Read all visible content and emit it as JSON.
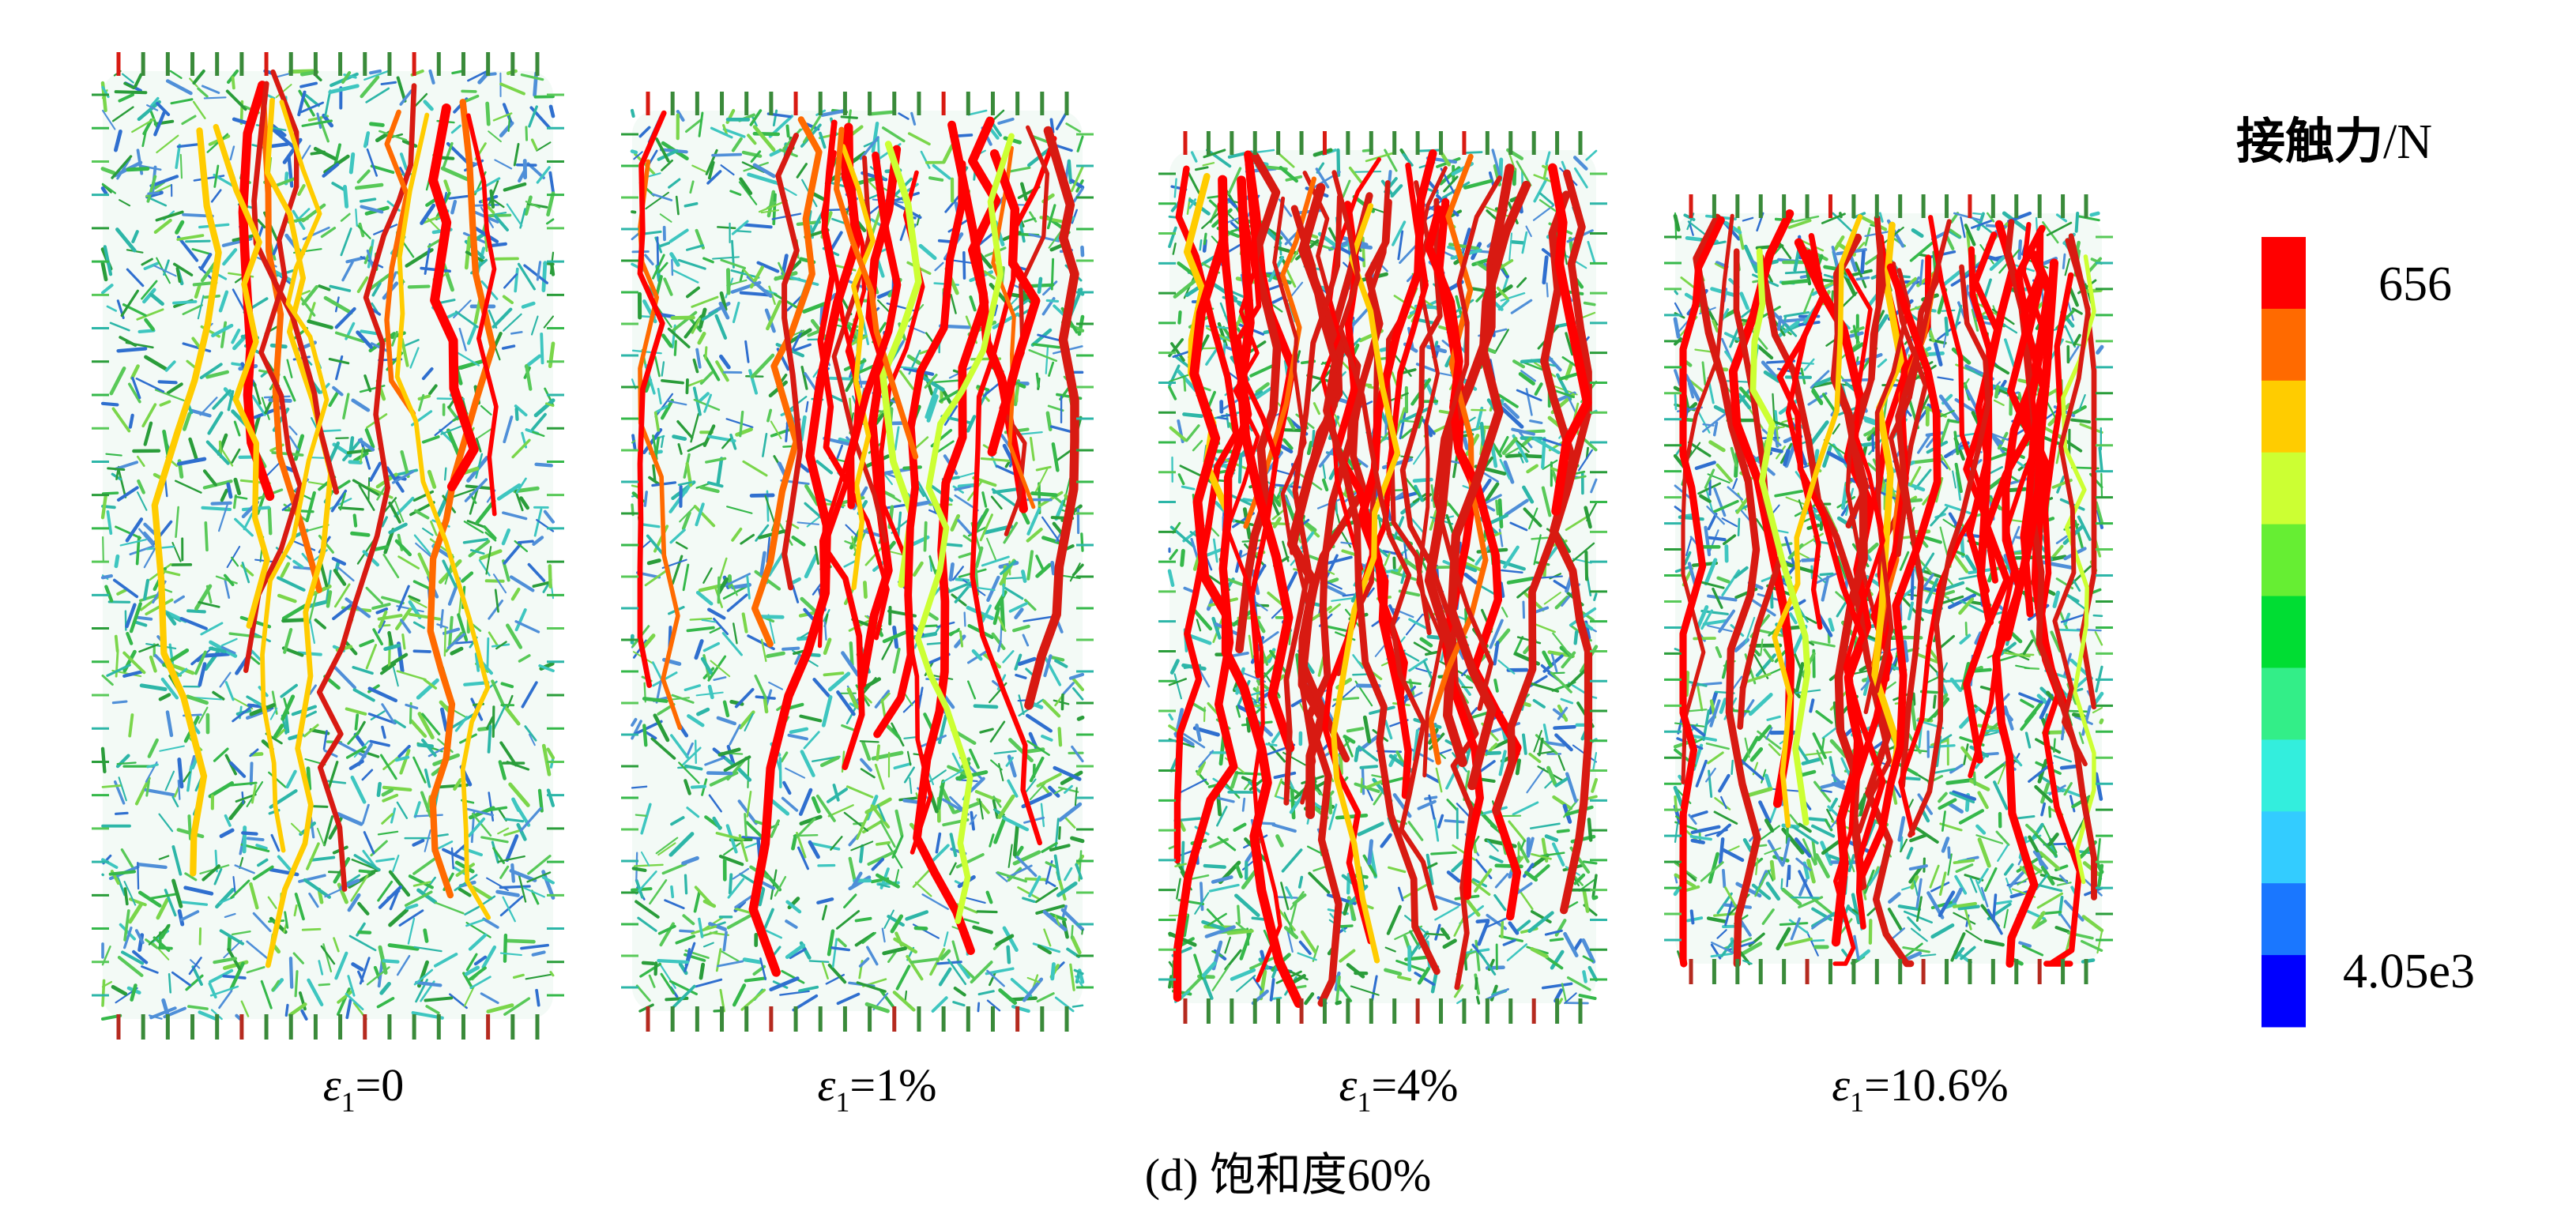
{
  "figure": {
    "caption": "(d) 饱和度60%",
    "strain_symbol": "ε",
    "strain_subscript": "1"
  },
  "panels": [
    {
      "value": "=0",
      "density": 0.2,
      "dominant": "green"
    },
    {
      "value": "=1%",
      "density": 0.45,
      "dominant": "mixed"
    },
    {
      "value": "=4%",
      "density": 0.75,
      "dominant": "red"
    },
    {
      "value": "=10.6%",
      "density": 0.85,
      "dominant": "red"
    }
  ],
  "legend": {
    "title": "接触力",
    "unit": "/N",
    "max_label": "656",
    "min_label": "4.05e3",
    "colors": [
      "#ff0000",
      "#ff6a00",
      "#ffcc00",
      "#ccff33",
      "#66ee33",
      "#00dd33",
      "#33ee88",
      "#33eedd",
      "#33ccff",
      "#1a77ff",
      "#0000ff"
    ]
  }
}
